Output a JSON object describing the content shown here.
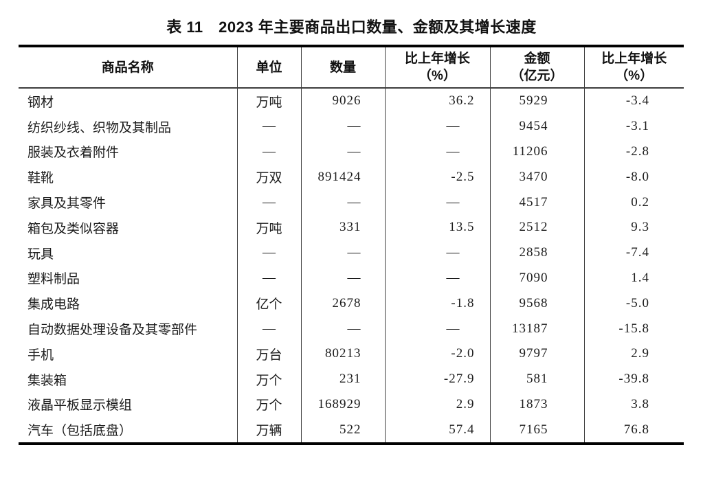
{
  "title": "表 11　2023 年主要商品出口数量、金额及其增长速度",
  "table": {
    "empty_marker": "—",
    "columns": [
      {
        "label": "商品名称",
        "sub": ""
      },
      {
        "label": "单位",
        "sub": ""
      },
      {
        "label": "数量",
        "sub": ""
      },
      {
        "label": "比上年增长",
        "sub": "（%）"
      },
      {
        "label": "金额",
        "sub": "（亿元）"
      },
      {
        "label": "比上年增长",
        "sub": "（%）"
      }
    ],
    "rows": [
      [
        "钢材",
        "万吨",
        "9026",
        "36.2",
        "5929",
        "-3.4"
      ],
      [
        "纺织纱线、织物及其制品",
        "—",
        "—",
        "—",
        "9454",
        "-3.1"
      ],
      [
        "服装及衣着附件",
        "—",
        "—",
        "—",
        "11206",
        "-2.8"
      ],
      [
        "鞋靴",
        "万双",
        "891424",
        "-2.5",
        "3470",
        "-8.0"
      ],
      [
        "家具及其零件",
        "—",
        "—",
        "—",
        "4517",
        "0.2"
      ],
      [
        "箱包及类似容器",
        "万吨",
        "331",
        "13.5",
        "2512",
        "9.3"
      ],
      [
        "玩具",
        "—",
        "—",
        "—",
        "2858",
        "-7.4"
      ],
      [
        "塑料制品",
        "—",
        "—",
        "—",
        "7090",
        "1.4"
      ],
      [
        "集成电路",
        "亿个",
        "2678",
        "-1.8",
        "9568",
        "-5.0"
      ],
      [
        "自动数据处理设备及其零部件",
        "—",
        "—",
        "—",
        "13187",
        "-15.8"
      ],
      [
        "手机",
        "万台",
        "80213",
        "-2.0",
        "9797",
        "2.9"
      ],
      [
        "集装箱",
        "万个",
        "231",
        "-27.9",
        "581",
        "-39.8"
      ],
      [
        "液晶平板显示模组",
        "万个",
        "168929",
        "2.9",
        "1873",
        "3.8"
      ],
      [
        "汽车（包括底盘）",
        "万辆",
        "522",
        "57.4",
        "7165",
        "76.8"
      ]
    ]
  }
}
